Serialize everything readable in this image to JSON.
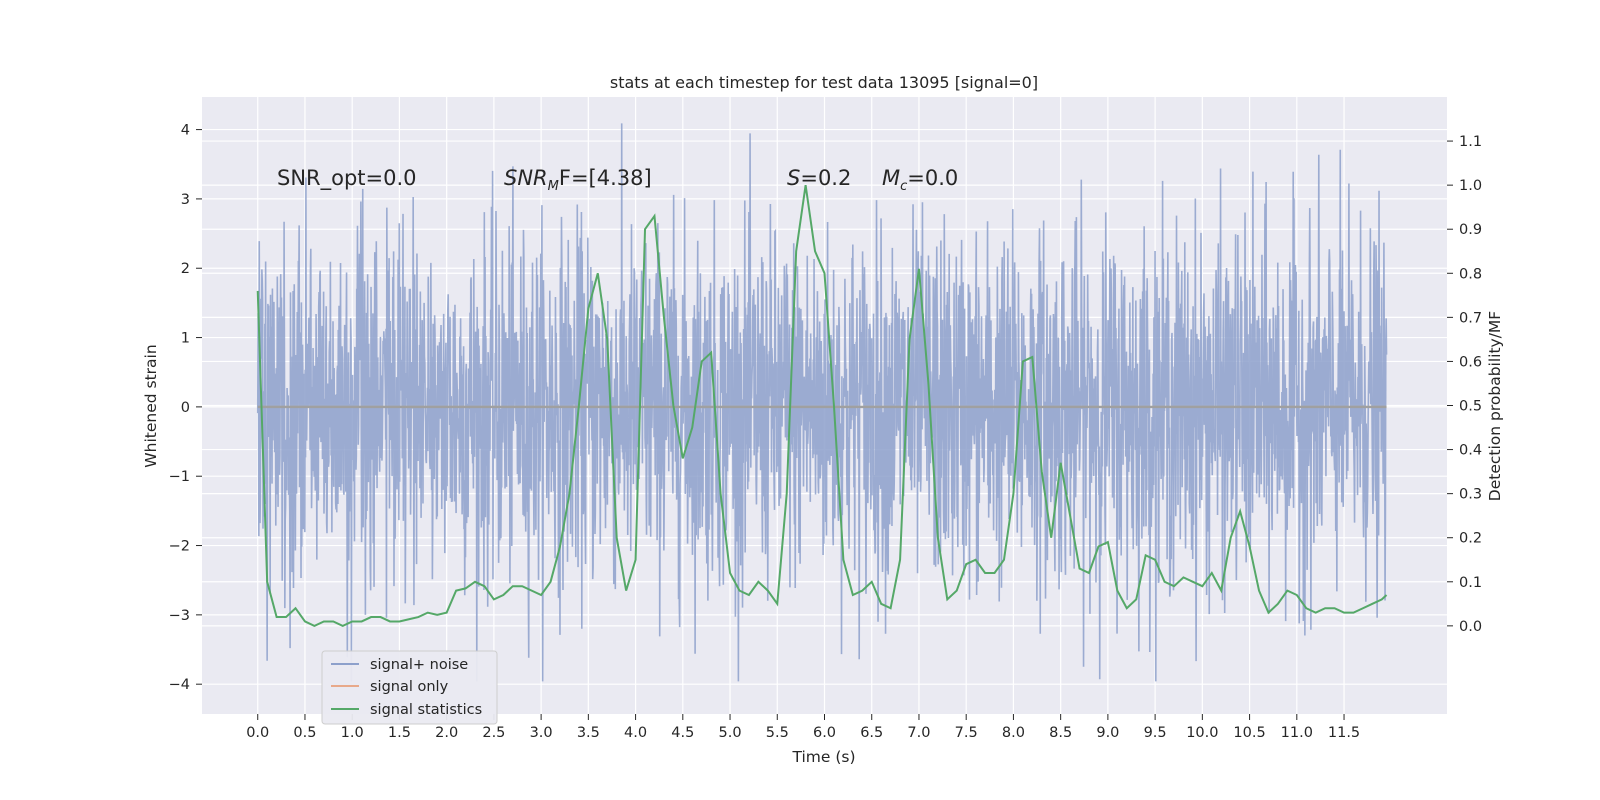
{
  "chart_data": {
    "type": "line",
    "title": "stats at each timestep for test data 13095 [signal=0]",
    "xlabel": "Time (s)",
    "ylabel_left": "Whitened strain",
    "ylabel_right": "Detection probability/MF",
    "x_ticks": [
      "0.0",
      "0.5",
      "1.0",
      "1.5",
      "2.0",
      "2.5",
      "3.0",
      "3.5",
      "4.0",
      "4.5",
      "5.0",
      "5.5",
      "6.0",
      "6.5",
      "7.0",
      "7.5",
      "8.0",
      "8.5",
      "9.0",
      "9.5",
      "10.0",
      "10.5",
      "11.0",
      "11.5"
    ],
    "y_left_ticks": [
      "4",
      "3",
      "2",
      "1",
      "0",
      "−1",
      "−2",
      "−3",
      "−4"
    ],
    "y_right_ticks": [
      "1.1",
      "1.0",
      "0.9",
      "0.8",
      "0.7",
      "0.6",
      "0.5",
      "0.4",
      "0.3",
      "0.2",
      "0.1",
      "0.0"
    ],
    "xlim": [
      -0.59,
      12.59
    ],
    "ylim_left": [
      -4.43,
      4.47
    ],
    "ylim_right": [
      -0.2,
      1.2
    ],
    "grid": true,
    "legend_position": "lower-left",
    "annotations": {
      "snr_opt": "SNR_opt=0.0",
      "snr_mf_base": "SNR",
      "snr_mf_sub": "M",
      "snr_mf_rest": "F=[4.38]",
      "s_sym": "S",
      "s_val": "=0.2",
      "mc_sym": "M",
      "mc_sub": "c",
      "mc_val": "=0.0"
    },
    "series": [
      {
        "name": "signal+ noise",
        "axis": "left",
        "color": "#8da0cb",
        "note_envelope": "dense whitened noise trace, values roughly within -3.9..4.1",
        "x": [
          0.0,
          11.95
        ],
        "y_range": [
          -3.96,
          4.09
        ]
      },
      {
        "name": "signal only",
        "axis": "left",
        "color": "#e8a98a",
        "x": [
          0.0,
          11.95
        ],
        "y": [
          0.0,
          0.0
        ]
      },
      {
        "name": "signal statistics",
        "axis": "right",
        "color": "#55a868",
        "x": [
          0.0,
          0.1,
          0.2,
          0.3,
          0.4,
          0.5,
          0.6,
          0.7,
          0.8,
          0.9,
          1.0,
          1.1,
          1.2,
          1.3,
          1.4,
          1.5,
          1.6,
          1.7,
          1.8,
          1.9,
          2.0,
          2.1,
          2.2,
          2.3,
          2.4,
          2.5,
          2.6,
          2.7,
          2.8,
          2.9,
          3.0,
          3.1,
          3.2,
          3.3,
          3.4,
          3.5,
          3.6,
          3.7,
          3.8,
          3.9,
          4.0,
          4.1,
          4.2,
          4.3,
          4.4,
          4.5,
          4.6,
          4.7,
          4.8,
          4.9,
          5.0,
          5.1,
          5.2,
          5.3,
          5.4,
          5.5,
          5.6,
          5.7,
          5.8,
          5.9,
          6.0,
          6.1,
          6.2,
          6.3,
          6.4,
          6.5,
          6.6,
          6.7,
          6.8,
          6.9,
          7.0,
          7.1,
          7.2,
          7.3,
          7.4,
          7.5,
          7.6,
          7.7,
          7.8,
          7.9,
          8.0,
          8.1,
          8.2,
          8.3,
          8.4,
          8.5,
          8.6,
          8.7,
          8.8,
          8.9,
          9.0,
          9.1,
          9.2,
          9.3,
          9.4,
          9.5,
          9.6,
          9.7,
          9.8,
          9.9,
          10.0,
          10.1,
          10.2,
          10.3,
          10.4,
          10.5,
          10.6,
          10.7,
          10.8,
          10.9,
          11.0,
          11.1,
          11.2,
          11.3,
          11.4,
          11.5,
          11.6,
          11.7,
          11.8,
          11.9,
          11.95
        ],
        "y": [
          0.76,
          0.1,
          0.02,
          0.02,
          0.04,
          0.01,
          0.0,
          0.01,
          0.01,
          0.0,
          0.01,
          0.01,
          0.02,
          0.02,
          0.01,
          0.01,
          0.015,
          0.02,
          0.03,
          0.025,
          0.03,
          0.08,
          0.085,
          0.1,
          0.09,
          0.06,
          0.07,
          0.09,
          0.09,
          0.08,
          0.07,
          0.1,
          0.18,
          0.3,
          0.5,
          0.72,
          0.8,
          0.65,
          0.2,
          0.08,
          0.15,
          0.9,
          0.93,
          0.7,
          0.5,
          0.38,
          0.45,
          0.6,
          0.62,
          0.3,
          0.12,
          0.08,
          0.07,
          0.1,
          0.08,
          0.05,
          0.3,
          0.85,
          1.0,
          0.85,
          0.8,
          0.5,
          0.15,
          0.07,
          0.08,
          0.1,
          0.05,
          0.04,
          0.15,
          0.65,
          0.81,
          0.55,
          0.2,
          0.06,
          0.08,
          0.14,
          0.15,
          0.12,
          0.12,
          0.15,
          0.3,
          0.6,
          0.61,
          0.35,
          0.2,
          0.37,
          0.25,
          0.13,
          0.12,
          0.18,
          0.19,
          0.08,
          0.04,
          0.06,
          0.16,
          0.15,
          0.1,
          0.09,
          0.11,
          0.1,
          0.09,
          0.12,
          0.08,
          0.2,
          0.26,
          0.18,
          0.08,
          0.03,
          0.05,
          0.08,
          0.07,
          0.04,
          0.03,
          0.04,
          0.04,
          0.03,
          0.03,
          0.04,
          0.05,
          0.06,
          0.07
        ]
      }
    ]
  }
}
